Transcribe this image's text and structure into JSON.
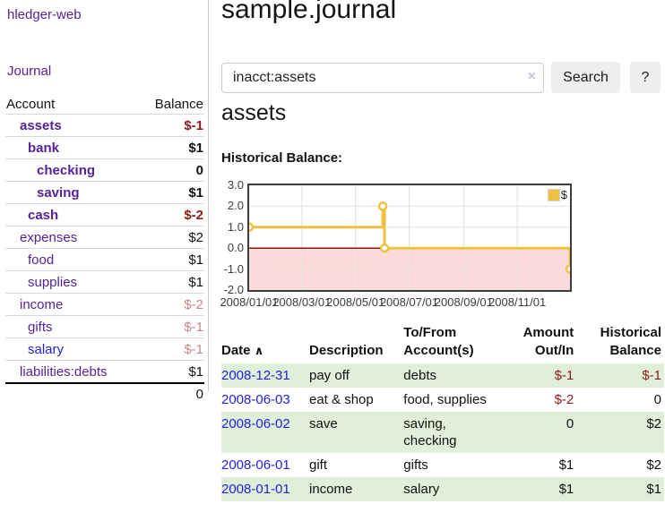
{
  "app": {
    "brand": "hledger-web",
    "nav_journal": "Journal"
  },
  "sidebar": {
    "headers": {
      "account": "Account",
      "balance": "Balance"
    },
    "accounts": [
      {
        "name": "assets",
        "balance": "$-1"
      },
      {
        "name": "bank",
        "balance": "$1"
      },
      {
        "name": "checking",
        "balance": "0"
      },
      {
        "name": "saving",
        "balance": "$1"
      },
      {
        "name": "cash",
        "balance": "$-2"
      },
      {
        "name": "expenses",
        "balance": "$2"
      },
      {
        "name": "food",
        "balance": "$1"
      },
      {
        "name": "supplies",
        "balance": "$1"
      },
      {
        "name": "income",
        "balance": "$-2"
      },
      {
        "name": "gifts",
        "balance": "$-1"
      },
      {
        "name": "salary",
        "balance": "$-1"
      },
      {
        "name": "liabilities:debts",
        "balance": "$1"
      }
    ],
    "total": "0"
  },
  "header": {
    "title": "sample.journal"
  },
  "search": {
    "value": "inacct:assets",
    "clear_icon": "×",
    "button_label": "Search",
    "help_label": "?"
  },
  "account_page": {
    "title": "assets",
    "chart_heading": "Historical Balance:"
  },
  "chart_data": {
    "type": "line",
    "title": "Historical Balance",
    "step": true,
    "series": [
      {
        "name": "$",
        "color": "#EDC240",
        "points": [
          {
            "x": "2008-01-01",
            "y": 1
          },
          {
            "x": "2008-06-01",
            "y": 2
          },
          {
            "x": "2008-06-03",
            "y": 0
          },
          {
            "x": "2008-12-31",
            "y": -1
          }
        ]
      }
    ],
    "xlim": [
      "2008-01-01",
      "2008-12-31"
    ],
    "ylim": [
      -2,
      3
    ],
    "yticks": [
      "3.0",
      "2.0",
      "1.0",
      "0.0",
      "-1.0",
      "-2.0"
    ],
    "xticks": [
      "2008/01/01",
      "2008/03/01",
      "2008/05/01",
      "2008/07/01",
      "2008/09/01",
      "2008/11/01"
    ],
    "grid": true,
    "legend_position": "top-right",
    "negative_region_color": "#fcdada",
    "zero_line_color": "#8b0000",
    "grid_color": "#e2e2e2"
  },
  "register": {
    "sort_icon": "∧",
    "columns": [
      {
        "l1": "Date"
      },
      {
        "l1": "Description"
      },
      {
        "l1": "To/From",
        "l2": "Account(s)"
      },
      {
        "l1": "Amount",
        "l2": "Out/In"
      },
      {
        "l1": "Historical",
        "l2": "Balance"
      }
    ],
    "rows": [
      {
        "date": "2008-12-31",
        "description": "pay off",
        "accounts": "debts",
        "amount": "$-1",
        "balance": "$-1"
      },
      {
        "date": "2008-06-03",
        "description": "eat & shop",
        "accounts": "food, supplies",
        "amount": "$-2",
        "balance": "0"
      },
      {
        "date": "2008-06-02",
        "description": "save",
        "accounts": "saving, checking",
        "amount": "0",
        "balance": "$2"
      },
      {
        "date": "2008-06-01",
        "description": "gift",
        "accounts": "gifts",
        "amount": "$1",
        "balance": "$2"
      },
      {
        "date": "2008-01-01",
        "description": "income",
        "accounts": "salary",
        "amount": "$1",
        "balance": "$1"
      }
    ]
  }
}
